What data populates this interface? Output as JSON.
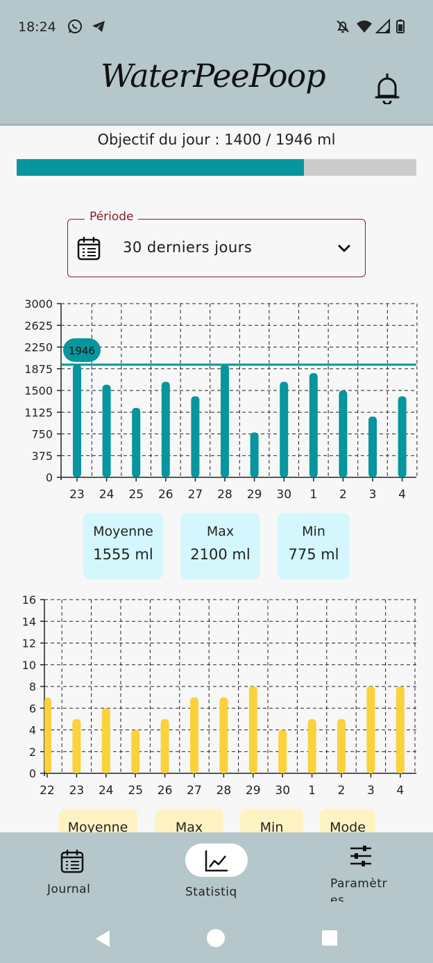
{
  "status": {
    "time": "18:24"
  },
  "app": {
    "title": "WaterPeePoop"
  },
  "goal": {
    "label": "Objectif du jour : 1400 / 1946 ml",
    "current": 1400,
    "target": 1946,
    "fill_fraction": 0.719
  },
  "period": {
    "label": "Période",
    "value": "30 derniers jours"
  },
  "water_stats": {
    "avg_label": "Moyenne",
    "avg_value": "1555 ml",
    "max_label": "Max",
    "max_value": "2100 ml",
    "min_label": "Min",
    "min_value": "775 ml"
  },
  "pee_stats": {
    "avg_label": "Moyenne",
    "max_label": "Max",
    "min_label": "Min",
    "mode_label": "Mode"
  },
  "nav": {
    "journal": "Journal",
    "stats": "Statistiq",
    "settings_line1": "Paramètr",
    "settings_line2": "es"
  },
  "colors": {
    "accent": "#07959e",
    "yellow": "#f9d23c",
    "bg": "#b5c7cb",
    "period_border": "#8a1b2c"
  },
  "chart_data": [
    {
      "type": "bar",
      "categories": [
        "23",
        "24",
        "25",
        "26",
        "27",
        "28",
        "29",
        "30",
        "1",
        "2",
        "3",
        "4"
      ],
      "values": [
        1946,
        1600,
        1200,
        1650,
        1400,
        1946,
        775,
        1650,
        1800,
        1500,
        1050,
        1400
      ],
      "y_ticks": [
        "0",
        "375",
        "750",
        "1125",
        "1500",
        "1875",
        "2250",
        "2625",
        "3000"
      ],
      "ylim": [
        0,
        3000
      ],
      "goal_line": 1946,
      "goal_label": "1946",
      "grid": true,
      "color": "#07959e"
    },
    {
      "type": "bar",
      "categories": [
        "22",
        "23",
        "24",
        "25",
        "26",
        "27",
        "28",
        "29",
        "30",
        "1",
        "2",
        "3",
        "4"
      ],
      "values": [
        7,
        5,
        6,
        4,
        5,
        7,
        7,
        8,
        4,
        5,
        5,
        8,
        8
      ],
      "y_ticks": [
        "0",
        "2",
        "4",
        "6",
        "8",
        "10",
        "12",
        "14",
        "16"
      ],
      "ylim": [
        0,
        16
      ],
      "grid": true,
      "color": "#f9d23c"
    }
  ]
}
